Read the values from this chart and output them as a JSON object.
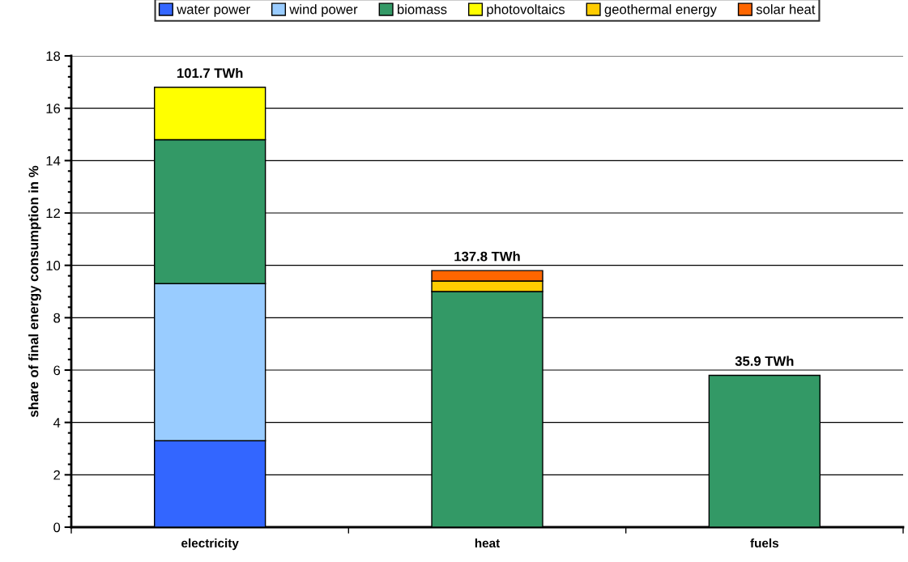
{
  "chart_data": {
    "type": "bar",
    "stacked": true,
    "ylabel": "share of final energy consumption in %",
    "categories": [
      "electricity",
      "heat",
      "fuels"
    ],
    "series": [
      {
        "name": "water power",
        "color": "#3366ff",
        "values": [
          3.3,
          null,
          null
        ]
      },
      {
        "name": "wind power",
        "color": "#99ccff",
        "values": [
          6.0,
          null,
          null
        ]
      },
      {
        "name": "biomass",
        "color": "#339966",
        "values": [
          5.5,
          9.0,
          5.8
        ]
      },
      {
        "name": "photovoltaics",
        "color": "#ffff00",
        "values": [
          2.0,
          null,
          null
        ]
      },
      {
        "name": "geothermal energy",
        "color": "#ffcc00",
        "values": [
          null,
          0.4,
          null
        ]
      },
      {
        "name": "solar heat",
        "color": "#ff6600",
        "values": [
          null,
          0.4,
          null
        ]
      }
    ],
    "annotations": [
      {
        "text": "101.7 TWh",
        "x": "electricity",
        "y": 16.8
      },
      {
        "text": "137.8 TWh",
        "x": "heat",
        "y": 9.8
      },
      {
        "text": "35.9 TWh",
        "x": "fuels",
        "y": 5.8
      }
    ],
    "ylim": [
      0,
      18
    ],
    "yticks": [
      0,
      2,
      4,
      6,
      8,
      10,
      12,
      14,
      16,
      18
    ],
    "grid": "y",
    "legend": "top"
  }
}
